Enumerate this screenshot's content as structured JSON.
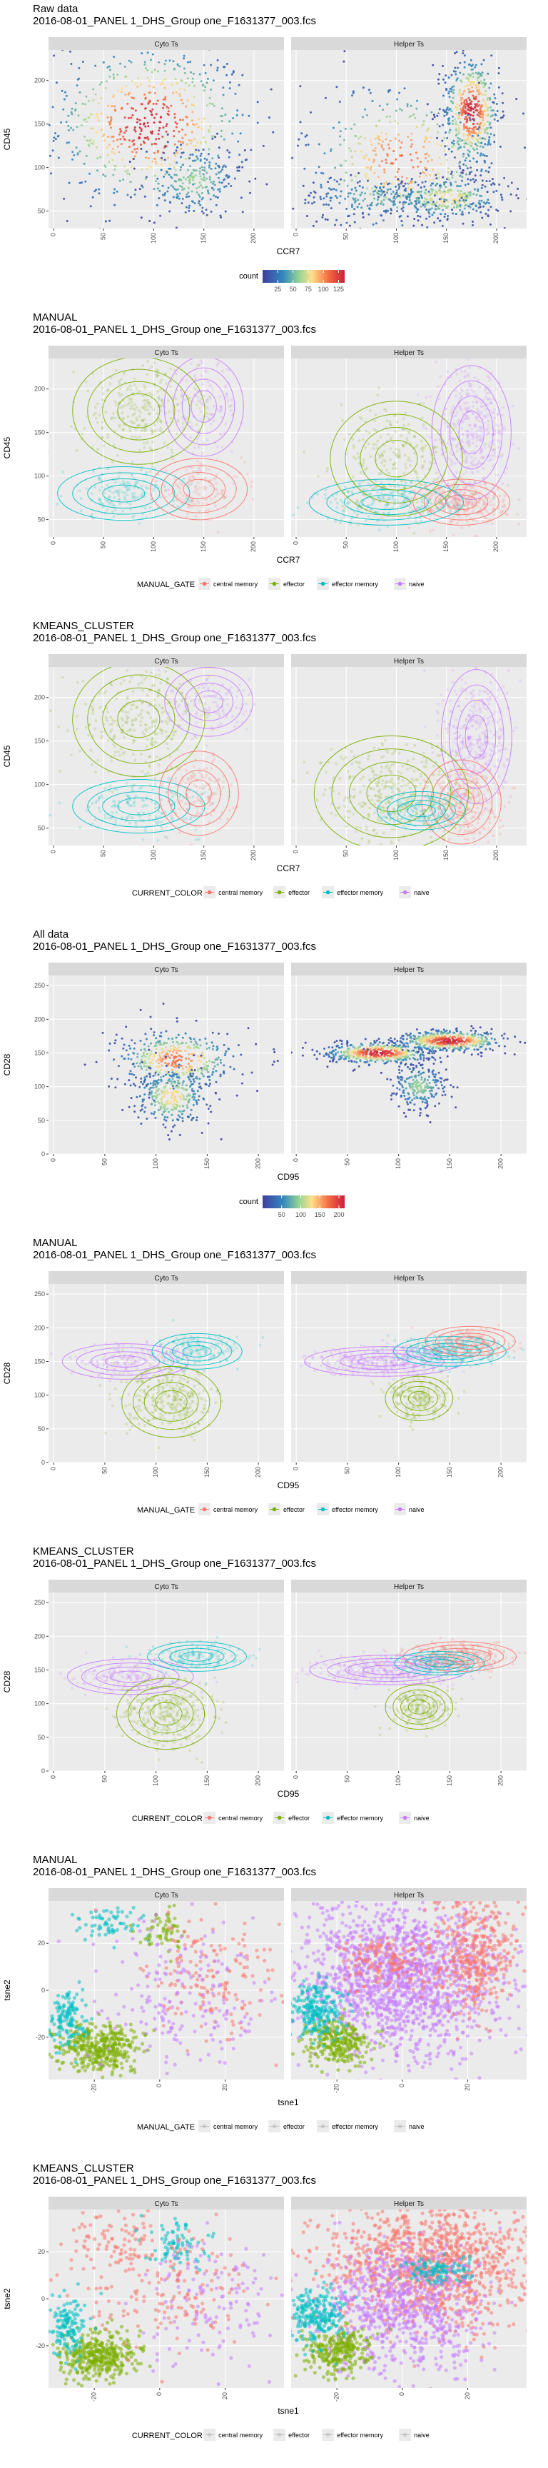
{
  "colors": {
    "central_memory": "#F8766D",
    "effector": "#7CAE00",
    "effector_memory": "#00BFC4",
    "naive": "#C77CFF",
    "panel_bg": "#EBEBEB",
    "strip_bg": "#D9D9D9",
    "density_low": "#3F3FA0",
    "density_high": "#CC1F3C"
  },
  "chart_data": [
    {
      "type": "scatter",
      "title": "Raw data",
      "subtitle": "2016-08-01_PANEL 1_DHS_Group one_F1631377_003.fcs",
      "panels": [
        "Cyto Ts",
        "Helper Ts"
      ],
      "xlabel": "CCR7",
      "ylabel": "CD45",
      "xlim": [
        -5,
        230
      ],
      "ylim": [
        30,
        235
      ],
      "xticks": [
        "0",
        "50",
        "100",
        "150",
        "200"
      ],
      "xtick_values": [
        0,
        50,
        100,
        150,
        200
      ],
      "yticks": [
        "50",
        "100",
        "150",
        "200"
      ],
      "ytick_values": [
        50,
        100,
        150,
        200
      ],
      "color_mode": "density",
      "legend_title": "count",
      "legend_ticks": [
        "25",
        "50",
        "75",
        "100",
        "125"
      ],
      "legend_tick_values": [
        25,
        50,
        75,
        100,
        125
      ],
      "legend_max": 135,
      "legend_items": [],
      "cyto_clusters": [
        {
          "cx": 95,
          "cy": 150,
          "sx": 52,
          "sy": 48,
          "n": 1400,
          "group": "effector"
        },
        {
          "cx": 140,
          "cy": 85,
          "sx": 25,
          "sy": 22,
          "n": 500,
          "group": "effector"
        }
      ],
      "helper_clusters": [
        {
          "cx": 175,
          "cy": 165,
          "sx": 14,
          "sy": 32,
          "n": 1100,
          "group": "naive"
        },
        {
          "cx": 150,
          "cy": 65,
          "sx": 28,
          "sy": 12,
          "n": 700,
          "group": "central_memory"
        },
        {
          "cx": 105,
          "cy": 110,
          "sx": 50,
          "sy": 45,
          "n": 900,
          "group": "effector"
        },
        {
          "cx": 80,
          "cy": 65,
          "sx": 40,
          "sy": 12,
          "n": 400,
          "group": "effector_memory"
        }
      ]
    },
    {
      "type": "scatter",
      "title": "MANUAL",
      "subtitle": "2016-08-01_PANEL 1_DHS_Group one_F1631377_003.fcs",
      "panels": [
        "Cyto Ts",
        "Helper Ts"
      ],
      "xlabel": "CCR7",
      "ylabel": "CD45",
      "xlim": [
        -5,
        230
      ],
      "ylim": [
        30,
        235
      ],
      "xticks": [
        "0",
        "50",
        "100",
        "150",
        "200"
      ],
      "xtick_values": [
        0,
        50,
        100,
        150,
        200
      ],
      "yticks": [
        "50",
        "100",
        "150",
        "200"
      ],
      "ytick_values": [
        50,
        100,
        150,
        200
      ],
      "color_mode": "group",
      "legend_title": "MANUAL_GATE",
      "legend_items": [
        {
          "key": "central_memory",
          "label": "central memory"
        },
        {
          "key": "effector",
          "label": "effector"
        },
        {
          "key": "effector_memory",
          "label": "effector memory"
        },
        {
          "key": "naive",
          "label": "naive"
        }
      ],
      "cyto_clusters": [
        {
          "cx": 85,
          "cy": 175,
          "sx": 30,
          "sy": 28,
          "n": 600,
          "group": "effector"
        },
        {
          "cx": 70,
          "cy": 80,
          "sx": 30,
          "sy": 14,
          "n": 350,
          "group": "effector_memory"
        },
        {
          "cx": 145,
          "cy": 85,
          "sx": 22,
          "sy": 16,
          "n": 300,
          "group": "central_memory"
        },
        {
          "cx": 150,
          "cy": 180,
          "sx": 18,
          "sy": 26,
          "n": 300,
          "group": "naive"
        }
      ],
      "helper_clusters": [
        {
          "cx": 175,
          "cy": 150,
          "sx": 18,
          "sy": 35,
          "n": 900,
          "group": "naive"
        },
        {
          "cx": 165,
          "cy": 70,
          "sx": 22,
          "sy": 12,
          "n": 700,
          "group": "central_memory"
        },
        {
          "cx": 90,
          "cy": 70,
          "sx": 35,
          "sy": 12,
          "n": 500,
          "group": "effector_memory"
        },
        {
          "cx": 100,
          "cy": 120,
          "sx": 30,
          "sy": 30,
          "n": 500,
          "group": "effector"
        }
      ]
    },
    {
      "type": "scatter",
      "title": "KMEANS_CLUSTER",
      "subtitle": "2016-08-01_PANEL 1_DHS_Group one_F1631377_003.fcs",
      "panels": [
        "Cyto Ts",
        "Helper Ts"
      ],
      "xlabel": "CCR7",
      "ylabel": "CD45",
      "xlim": [
        -5,
        230
      ],
      "ylim": [
        30,
        235
      ],
      "xticks": [
        "0",
        "50",
        "100",
        "150",
        "200"
      ],
      "xtick_values": [
        0,
        50,
        100,
        150,
        200
      ],
      "yticks": [
        "50",
        "100",
        "150",
        "200"
      ],
      "ytick_values": [
        50,
        100,
        150,
        200
      ],
      "color_mode": "group",
      "legend_title": "CURRENT_COLOR",
      "legend_items": [
        {
          "key": "central_memory",
          "label": "central memory"
        },
        {
          "key": "effector",
          "label": "effector"
        },
        {
          "key": "effector_memory",
          "label": "effector memory"
        },
        {
          "key": "naive",
          "label": "naive"
        }
      ],
      "cyto_clusters": [
        {
          "cx": 85,
          "cy": 175,
          "sx": 30,
          "sy": 30,
          "n": 600,
          "group": "effector"
        },
        {
          "cx": 85,
          "cy": 75,
          "sx": 30,
          "sy": 14,
          "n": 350,
          "group": "effector_memory"
        },
        {
          "cx": 145,
          "cy": 90,
          "sx": 18,
          "sy": 22,
          "n": 300,
          "group": "central_memory"
        },
        {
          "cx": 155,
          "cy": 195,
          "sx": 20,
          "sy": 18,
          "n": 300,
          "group": "naive"
        }
      ],
      "helper_clusters": [
        {
          "cx": 180,
          "cy": 155,
          "sx": 16,
          "sy": 35,
          "n": 800,
          "group": "naive"
        },
        {
          "cx": 165,
          "cy": 80,
          "sx": 18,
          "sy": 22,
          "n": 700,
          "group": "central_memory"
        },
        {
          "cx": 95,
          "cy": 90,
          "sx": 35,
          "sy": 30,
          "n": 800,
          "group": "effector"
        },
        {
          "cx": 125,
          "cy": 70,
          "sx": 20,
          "sy": 10,
          "n": 300,
          "group": "effector_memory"
        }
      ]
    },
    {
      "type": "scatter",
      "title": "All data",
      "subtitle": "2016-08-01_PANEL 1_DHS_Group one_F1631377_003.fcs",
      "panels": [
        "Cyto Ts",
        "Helper Ts"
      ],
      "xlabel": "CD95",
      "ylabel": "CD28",
      "xlim": [
        -5,
        225
      ],
      "ylim": [
        0,
        265
      ],
      "xticks": [
        "0",
        "50",
        "100",
        "150",
        "200"
      ],
      "xtick_values": [
        0,
        50,
        100,
        150,
        200
      ],
      "yticks": [
        "0",
        "50",
        "100",
        "150",
        "200",
        "250"
      ],
      "ytick_values": [
        0,
        50,
        100,
        150,
        200,
        250
      ],
      "color_mode": "density",
      "legend_title": "count",
      "legend_ticks": [
        "50",
        "100",
        "150",
        "200"
      ],
      "legend_tick_values": [
        50,
        100,
        150,
        200
      ],
      "legend_max": 215,
      "legend_items": [],
      "cyto_clusters": [
        {
          "cx": 120,
          "cy": 140,
          "sx": 30,
          "sy": 22,
          "n": 900,
          "group": "effector"
        },
        {
          "cx": 115,
          "cy": 85,
          "sx": 18,
          "sy": 22,
          "n": 700,
          "group": "effector"
        }
      ],
      "helper_clusters": [
        {
          "cx": 80,
          "cy": 150,
          "sx": 26,
          "sy": 8,
          "n": 1100,
          "group": "naive"
        },
        {
          "cx": 150,
          "cy": 168,
          "sx": 26,
          "sy": 8,
          "n": 1100,
          "group": "central_memory"
        },
        {
          "cx": 120,
          "cy": 100,
          "sx": 14,
          "sy": 18,
          "n": 500,
          "group": "effector"
        }
      ]
    },
    {
      "type": "scatter",
      "title": "MANUAL",
      "subtitle": "2016-08-01_PANEL 1_DHS_Group one_F1631377_003.fcs",
      "panels": [
        "Cyto Ts",
        "Helper Ts"
      ],
      "xlabel": "CD95",
      "ylabel": "CD28",
      "xlim": [
        -5,
        225
      ],
      "ylim": [
        0,
        265
      ],
      "xticks": [
        "0",
        "50",
        "100",
        "150",
        "200"
      ],
      "xtick_values": [
        0,
        50,
        100,
        150,
        200
      ],
      "yticks": [
        "0",
        "50",
        "100",
        "150",
        "200",
        "250"
      ],
      "ytick_values": [
        0,
        50,
        100,
        150,
        200,
        250
      ],
      "color_mode": "group",
      "legend_title": "MANUAL_GATE",
      "legend_items": [
        {
          "key": "central_memory",
          "label": "central memory"
        },
        {
          "key": "effector",
          "label": "effector"
        },
        {
          "key": "effector_memory",
          "label": "effector memory"
        },
        {
          "key": "naive",
          "label": "naive"
        }
      ],
      "cyto_clusters": [
        {
          "cx": 70,
          "cy": 150,
          "sx": 28,
          "sy": 12,
          "n": 400,
          "group": "naive"
        },
        {
          "cx": 140,
          "cy": 165,
          "sx": 20,
          "sy": 12,
          "n": 350,
          "group": "effector_memory"
        },
        {
          "cx": 115,
          "cy": 90,
          "sx": 22,
          "sy": 24,
          "n": 700,
          "group": "effector"
        }
      ],
      "helper_clusters": [
        {
          "cx": 85,
          "cy": 150,
          "sx": 35,
          "sy": 10,
          "n": 900,
          "group": "naive"
        },
        {
          "cx": 150,
          "cy": 165,
          "sx": 25,
          "sy": 10,
          "n": 700,
          "group": "effector_memory"
        },
        {
          "cx": 170,
          "cy": 180,
          "sx": 20,
          "sy": 10,
          "n": 300,
          "group": "central_memory"
        },
        {
          "cx": 120,
          "cy": 95,
          "sx": 15,
          "sy": 15,
          "n": 450,
          "group": "effector"
        }
      ]
    },
    {
      "type": "scatter",
      "title": "KMEANS_CLUSTER",
      "subtitle": "2016-08-01_PANEL 1_DHS_Group one_F1631377_003.fcs",
      "panels": [
        "Cyto Ts",
        "Helper Ts"
      ],
      "xlabel": "CD95",
      "ylabel": "CD28",
      "xlim": [
        -5,
        225
      ],
      "ylim": [
        0,
        265
      ],
      "xticks": [
        "0",
        "50",
        "100",
        "150",
        "200"
      ],
      "xtick_values": [
        0,
        50,
        100,
        150,
        200
      ],
      "yticks": [
        "0",
        "50",
        "100",
        "150",
        "200",
        "250"
      ],
      "ytick_values": [
        0,
        50,
        100,
        150,
        200,
        250
      ],
      "color_mode": "group",
      "legend_title": "CURRENT_COLOR",
      "legend_items": [
        {
          "key": "central_memory",
          "label": "central memory"
        },
        {
          "key": "effector",
          "label": "effector"
        },
        {
          "key": "effector_memory",
          "label": "effector memory"
        },
        {
          "key": "naive",
          "label": "naive"
        }
      ],
      "cyto_clusters": [
        {
          "cx": 75,
          "cy": 140,
          "sx": 28,
          "sy": 12,
          "n": 400,
          "group": "naive"
        },
        {
          "cx": 140,
          "cy": 170,
          "sx": 22,
          "sy": 10,
          "n": 350,
          "group": "effector_memory"
        },
        {
          "cx": 110,
          "cy": 85,
          "sx": 22,
          "sy": 24,
          "n": 700,
          "group": "effector"
        }
      ],
      "helper_clusters": [
        {
          "cx": 90,
          "cy": 150,
          "sx": 35,
          "sy": 10,
          "n": 900,
          "group": "naive"
        },
        {
          "cx": 160,
          "cy": 170,
          "sx": 25,
          "sy": 10,
          "n": 700,
          "group": "central_memory"
        },
        {
          "cx": 140,
          "cy": 160,
          "sx": 20,
          "sy": 8,
          "n": 300,
          "group": "effector_memory"
        },
        {
          "cx": 120,
          "cy": 95,
          "sx": 15,
          "sy": 15,
          "n": 450,
          "group": "effector"
        }
      ]
    },
    {
      "type": "scatter",
      "title": "MANUAL",
      "subtitle": "2016-08-01_PANEL 1_DHS_Group one_F1631377_003.fcs",
      "panels": [
        "Cyto Ts",
        "Helper Ts"
      ],
      "xlabel": "tsne1",
      "ylabel": "tsne2",
      "xlim": [
        -34,
        38
      ],
      "ylim": [
        -38,
        38
      ],
      "xticks": [
        "-20",
        "0",
        "20"
      ],
      "xtick_values": [
        -20,
        0,
        20
      ],
      "yticks": [
        "-20",
        "0",
        "20"
      ],
      "ytick_values": [
        -20,
        0,
        20
      ],
      "color_mode": "group",
      "legend_title": "MANUAL_GATE",
      "legend_items": [
        {
          "key": "central_memory",
          "label": "central memory"
        },
        {
          "key": "effector",
          "label": "effector"
        },
        {
          "key": "effector_memory",
          "label": "effector memory"
        },
        {
          "key": "naive",
          "label": "naive"
        }
      ],
      "cyto_clusters": [
        {
          "cx": -18,
          "cy": -24,
          "sx": 6,
          "sy": 5,
          "n": 700,
          "group": "effector"
        },
        {
          "cx": -28,
          "cy": -12,
          "sx": 3,
          "sy": 6,
          "n": 250,
          "group": "effector_memory"
        },
        {
          "cx": -14,
          "cy": 28,
          "sx": 5,
          "sy": 4,
          "n": 120,
          "group": "effector_memory"
        },
        {
          "cx": 0,
          "cy": 25,
          "sx": 4,
          "sy": 5,
          "n": 120,
          "group": "effector"
        },
        {
          "cx": 15,
          "cy": 5,
          "sx": 10,
          "sy": 14,
          "n": 300,
          "group": "central_memory"
        },
        {
          "cx": 5,
          "cy": -5,
          "sx": 14,
          "sy": 18,
          "n": 350,
          "group": "naive"
        }
      ],
      "helper_clusters": [
        {
          "cx": 0,
          "cy": 5,
          "sx": 16,
          "sy": 16,
          "n": 3000,
          "group": "naive"
        },
        {
          "cx": 22,
          "cy": 15,
          "sx": 6,
          "sy": 12,
          "n": 700,
          "group": "central_memory"
        },
        {
          "cx": -20,
          "cy": -22,
          "sx": 5,
          "sy": 5,
          "n": 500,
          "group": "effector"
        },
        {
          "cx": -26,
          "cy": -8,
          "sx": 4,
          "sy": 6,
          "n": 400,
          "group": "effector_memory"
        },
        {
          "cx": -5,
          "cy": 12,
          "sx": 8,
          "sy": 6,
          "n": 300,
          "group": "central_memory"
        }
      ]
    },
    {
      "type": "scatter",
      "title": "KMEANS_CLUSTER",
      "subtitle": "2016-08-01_PANEL 1_DHS_Group one_F1631377_003.fcs",
      "panels": [
        "Cyto Ts",
        "Helper Ts"
      ],
      "xlabel": "tsne1",
      "ylabel": "tsne2",
      "xlim": [
        -34,
        38
      ],
      "ylim": [
        -38,
        38
      ],
      "xticks": [
        "-20",
        "0",
        "20"
      ],
      "xtick_values": [
        -20,
        0,
        20
      ],
      "yticks": [
        "-20",
        "0",
        "20"
      ],
      "ytick_values": [
        -20,
        0,
        20
      ],
      "color_mode": "group",
      "legend_title": "CURRENT_COLOR",
      "legend_items": [
        {
          "key": "central_memory",
          "label": "central memory"
        },
        {
          "key": "effector",
          "label": "effector"
        },
        {
          "key": "effector_memory",
          "label": "effector memory"
        },
        {
          "key": "naive",
          "label": "naive"
        }
      ],
      "cyto_clusters": [
        {
          "cx": -18,
          "cy": -24,
          "sx": 6,
          "sy": 5,
          "n": 700,
          "group": "effector"
        },
        {
          "cx": -28,
          "cy": -12,
          "sx": 3,
          "sy": 6,
          "n": 250,
          "group": "effector_memory"
        },
        {
          "cx": -12,
          "cy": 25,
          "sx": 8,
          "sy": 6,
          "n": 150,
          "group": "central_memory"
        },
        {
          "cx": 5,
          "cy": 22,
          "sx": 5,
          "sy": 5,
          "n": 150,
          "group": "effector_memory"
        },
        {
          "cx": 15,
          "cy": 0,
          "sx": 10,
          "sy": 14,
          "n": 250,
          "group": "naive"
        },
        {
          "cx": 0,
          "cy": 5,
          "sx": 14,
          "sy": 14,
          "n": 300,
          "group": "central_memory"
        }
      ],
      "helper_clusters": [
        {
          "cx": 8,
          "cy": 15,
          "sx": 16,
          "sy": 14,
          "n": 2200,
          "group": "central_memory"
        },
        {
          "cx": 0,
          "cy": -5,
          "sx": 12,
          "sy": 14,
          "n": 1400,
          "group": "naive"
        },
        {
          "cx": -20,
          "cy": -22,
          "sx": 5,
          "sy": 5,
          "n": 500,
          "group": "effector"
        },
        {
          "cx": -26,
          "cy": -8,
          "sx": 4,
          "sy": 6,
          "n": 400,
          "group": "effector_memory"
        },
        {
          "cx": 10,
          "cy": 12,
          "sx": 5,
          "sy": 3,
          "n": 200,
          "group": "effector_memory"
        }
      ]
    }
  ]
}
